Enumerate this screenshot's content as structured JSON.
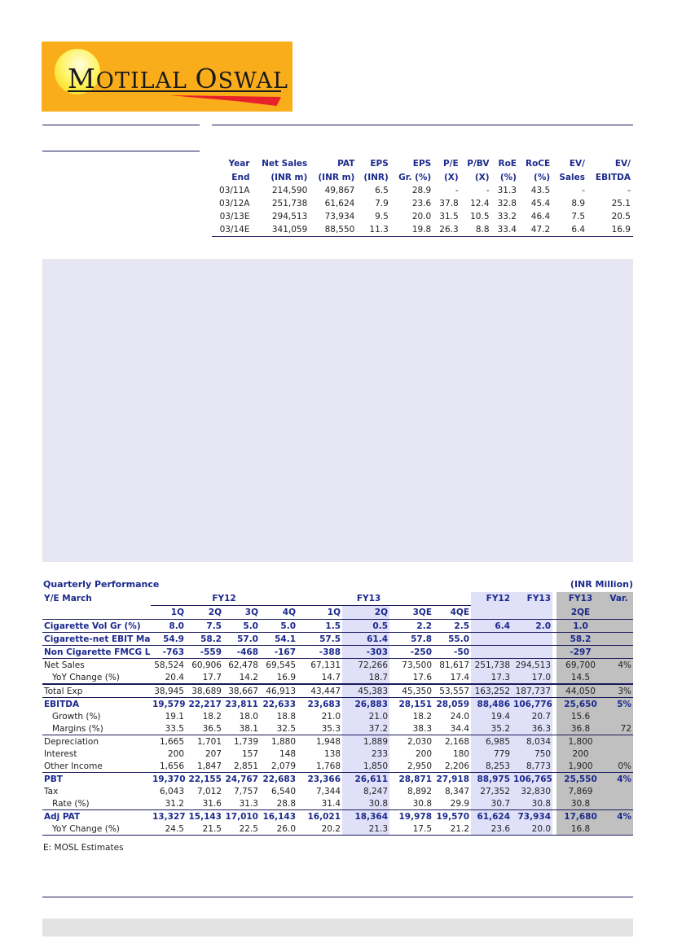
{
  "logo": {
    "text": "Motilal Oswal",
    "brand_color": "#f9ad1b"
  },
  "summary_table": {
    "headers": [
      [
        "Year",
        "End"
      ],
      [
        "Net Sales",
        "(INR m)"
      ],
      [
        "PAT",
        "(INR m)"
      ],
      [
        "EPS",
        "(INR)"
      ],
      [
        "EPS",
        "Gr. (%)"
      ],
      [
        "P/E",
        "(X)"
      ],
      [
        "P/BV",
        "(X)"
      ],
      [
        "RoE",
        "(%)"
      ],
      [
        "RoCE",
        "(%)"
      ],
      [
        "EV/",
        "Sales"
      ],
      [
        "EV/",
        "EBITDA"
      ]
    ],
    "rows": [
      [
        "03/11A",
        "214,590",
        "49,867",
        "6.5",
        "28.9",
        "-",
        "-",
        "31.3",
        "43.5",
        "-",
        "-"
      ],
      [
        "03/12A",
        "251,738",
        "61,624",
        "7.9",
        "23.6",
        "37.8",
        "12.4",
        "32.8",
        "45.4",
        "8.9",
        "25.1"
      ],
      [
        "03/13E",
        "294,513",
        "73,934",
        "9.5",
        "20.0",
        "31.5",
        "10.5",
        "33.2",
        "46.4",
        "7.5",
        "20.5"
      ],
      [
        "03/14E",
        "341,059",
        "88,550",
        "11.3",
        "19.8",
        "26.3",
        "8.8",
        "33.4",
        "47.2",
        "6.4",
        "16.9"
      ]
    ]
  },
  "quarterly": {
    "title": "Quarterly Performance",
    "unit": "(INR Million)",
    "header_label": "Y/E March",
    "groups": {
      "fy12": "FY12",
      "fy13": "FY13",
      "annual_fy12": "FY12",
      "annual_fy13": "FY13",
      "est_fy13": "FY13",
      "var": "Var."
    },
    "quarters": [
      "1Q",
      "2Q",
      "3Q",
      "4Q",
      "1Q",
      "2Q",
      "3QE",
      "4QE",
      "",
      "",
      "2QE",
      ""
    ],
    "rows": [
      {
        "label": "Cigarette Vol Gr (%)",
        "style": "bold-text line",
        "values": [
          "8.0",
          "7.5",
          "5.0",
          "5.0",
          "1.5",
          "0.5",
          "2.2",
          "2.5",
          "6.4",
          "2.0",
          "1.0",
          ""
        ]
      },
      {
        "label": "Cigarette-net EBIT Margin",
        "style": "bold-text line",
        "values": [
          "54.9",
          "58.2",
          "57.0",
          "54.1",
          "57.5",
          "61.4",
          "57.8",
          "55.0",
          "",
          "",
          "58.2",
          ""
        ]
      },
      {
        "label": "Non Cigarette FMCG Loss",
        "style": "bold-text line",
        "values": [
          "-763",
          "-559",
          "-468",
          "-167",
          "-388",
          "-303",
          "-250",
          "-50",
          "",
          "",
          "-297",
          ""
        ]
      },
      {
        "label": "Net Sales",
        "style": "",
        "values": [
          "58,524",
          "60,906",
          "62,478",
          "69,545",
          "67,131",
          "72,266",
          "73,500",
          "81,617",
          "251,738",
          "294,513",
          "69,700",
          "4%"
        ]
      },
      {
        "label": "YoY Change (%)",
        "style": "ind thick",
        "values": [
          "20.4",
          "17.7",
          "14.2",
          "16.9",
          "14.7",
          "18.7",
          "17.6",
          "17.4",
          "17.3",
          "17.0",
          "14.5",
          ""
        ]
      },
      {
        "label": "Total Exp",
        "style": "line",
        "values": [
          "38,945",
          "38,689",
          "38,667",
          "46,913",
          "43,447",
          "45,383",
          "45,350",
          "53,557",
          "163,252",
          "187,737",
          "44,050",
          "3%"
        ]
      },
      {
        "label": "EBITDA",
        "style": "b",
        "values": [
          "19,579",
          "22,217",
          "23,811",
          "22,633",
          "23,683",
          "26,883",
          "28,151",
          "28,059",
          "88,486",
          "106,776",
          "25,650",
          "5%"
        ]
      },
      {
        "label": "Growth (%)",
        "style": "ind",
        "values": [
          "19.1",
          "18.2",
          "18.0",
          "18.8",
          "21.0",
          "21.0",
          "18.2",
          "24.0",
          "19.4",
          "20.7",
          "15.6",
          ""
        ]
      },
      {
        "label": "Margins (%)",
        "style": "ind line",
        "values": [
          "33.5",
          "36.5",
          "38.1",
          "32.5",
          "35.3",
          "37.2",
          "38.3",
          "34.4",
          "35.2",
          "36.3",
          "36.8",
          "72"
        ]
      },
      {
        "label": "Depreciation",
        "style": "",
        "values": [
          "1,665",
          "1,701",
          "1,739",
          "1,880",
          "1,948",
          "1,889",
          "2,030",
          "2,168",
          "6,985",
          "8,034",
          "1,800",
          ""
        ]
      },
      {
        "label": "Interest",
        "style": "",
        "values": [
          "200",
          "207",
          "157",
          "148",
          "138",
          "233",
          "200",
          "180",
          "779",
          "750",
          "200",
          ""
        ]
      },
      {
        "label": "Other Income",
        "style": "line",
        "values": [
          "1,656",
          "1,847",
          "2,851",
          "2,079",
          "1,768",
          "1,850",
          "2,950",
          "2,206",
          "8,253",
          "8,773",
          "1,900",
          "0%"
        ]
      },
      {
        "label": "PBT",
        "style": "b",
        "values": [
          "19,370",
          "22,155",
          "24,767",
          "22,683",
          "23,366",
          "26,611",
          "28,871",
          "27,918",
          "88,975",
          "106,765",
          "25,550",
          "4%"
        ]
      },
      {
        "label": "Tax",
        "style": "",
        "values": [
          "6,043",
          "7,012",
          "7,757",
          "6,540",
          "7,344",
          "8,247",
          "8,892",
          "8,347",
          "27,352",
          "32,830",
          "7,869",
          ""
        ]
      },
      {
        "label": "Rate (%)",
        "style": "ind line",
        "values": [
          "31.2",
          "31.6",
          "31.3",
          "28.8",
          "31.4",
          "30.8",
          "30.8",
          "29.9",
          "30.7",
          "30.8",
          "30.8",
          ""
        ]
      },
      {
        "label": "Adj PAT",
        "style": "b",
        "values": [
          "13,327",
          "15,143",
          "17,010",
          "16,143",
          "16,021",
          "18,364",
          "19,978",
          "19,570",
          "61,624",
          "73,934",
          "17,680",
          "4%"
        ]
      },
      {
        "label": "YoY Change (%)",
        "style": "ind line",
        "values": [
          "24.5",
          "21.5",
          "22.5",
          "26.0",
          "20.2",
          "21.3",
          "17.5",
          "21.2",
          "23.6",
          "20.0",
          "16.8",
          ""
        ]
      }
    ],
    "footnote": "E: MOSL Estimates"
  },
  "colors": {
    "text_blue": "#1c2a8c",
    "lavender": "#e0e0f8",
    "gray": "#c0c0c0"
  }
}
